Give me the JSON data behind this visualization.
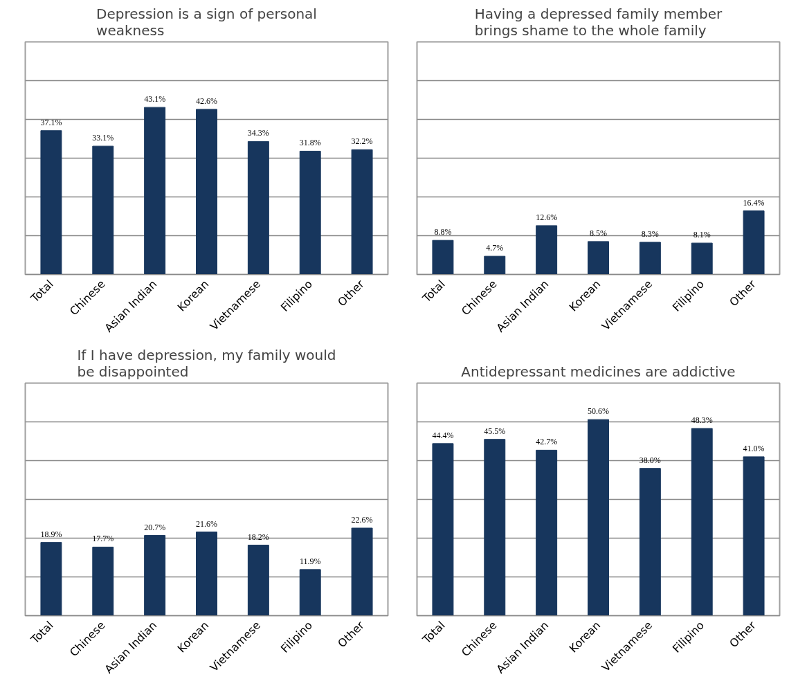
{
  "chart_data": [
    {
      "type": "bar",
      "title": "Depression is a sign of personal weakness",
      "categories": [
        "Total",
        "Chinese",
        "Asian Indian",
        "Korean",
        "Vietnamese",
        "Filipino",
        "Other"
      ],
      "values": [
        37.1,
        33.1,
        43.1,
        42.6,
        34.3,
        31.8,
        32.2
      ],
      "value_labels": [
        "37.1%",
        "33.1%",
        "43.1%",
        "42.6%",
        "34.3%",
        "31.8%",
        "32.2%"
      ],
      "color": "#17365d",
      "ylim": [
        0,
        60
      ],
      "yticks": [
        {
          "value": 0,
          "label": null
        },
        {
          "value": 10,
          "label": null
        },
        {
          "value": 20,
          "label": null
        },
        {
          "value": 30,
          "label": null
        },
        {
          "value": 40,
          "label": null
        },
        {
          "value": 50,
          "label": null
        },
        {
          "value": 60,
          "label": null
        }
      ],
      "grid": "y",
      "tick_labels": "x"
    },
    {
      "type": "bar",
      "title": "Having a depressed family member brings shame to the whole family",
      "categories": [
        "Total",
        "Chinese",
        "Asian Indian",
        "Korean",
        "Vietnamese",
        "Filipino",
        "Other"
      ],
      "values": [
        8.8,
        4.7,
        12.6,
        8.5,
        8.3,
        8.1,
        16.4
      ],
      "value_labels": [
        "8.8%",
        "4.7%",
        "12.6%",
        "8.5%",
        "8.3%",
        "8.1%",
        "16.4%"
      ],
      "color": "#17365d",
      "ylim": [
        0,
        60
      ],
      "yticks": [
        {
          "value": 0,
          "label": null
        },
        {
          "value": 10,
          "label": null
        },
        {
          "value": 20,
          "label": null
        },
        {
          "value": 30,
          "label": null
        },
        {
          "value": 40,
          "label": null
        },
        {
          "value": 50,
          "label": null
        },
        {
          "value": 60,
          "label": null
        }
      ],
      "grid": "y",
      "tick_labels": "x"
    },
    {
      "type": "bar",
      "title": "If I have depression, my family would be disappointed",
      "categories": [
        "Total",
        "Chinese",
        "Asian Indian",
        "Korean",
        "Vietnamese",
        "Filipino",
        "Other"
      ],
      "values": [
        18.9,
        17.7,
        20.7,
        21.6,
        18.2,
        11.9,
        22.6
      ],
      "value_labels": [
        "18.9%",
        "17.7%",
        "20.7%",
        "21.6%",
        "18.2%",
        "11.9%",
        "22.6%"
      ],
      "color": "#17365d",
      "ylim": [
        0,
        60
      ],
      "yticks": [
        {
          "value": 0,
          "label": null
        },
        {
          "value": 10,
          "label": null
        },
        {
          "value": 20,
          "label": null
        },
        {
          "value": 30,
          "label": null
        },
        {
          "value": 40,
          "label": null
        },
        {
          "value": 50,
          "label": null
        },
        {
          "value": 60,
          "label": null
        }
      ],
      "grid": "y",
      "tick_labels": "x"
    },
    {
      "type": "bar",
      "title": "Antidepressant medicines are addictive",
      "categories": [
        "Total",
        "Chinese",
        "Asian Indian",
        "Korean",
        "Vietnamese",
        "Filipino",
        "Other"
      ],
      "values": [
        44.4,
        45.5,
        42.7,
        50.6,
        38.0,
        48.3,
        41.0
      ],
      "value_labels": [
        "44.4%",
        "45.5%",
        "42.7%",
        "50.6%",
        "38.0%",
        "48.3%",
        "41.0%"
      ],
      "color": "#17365d",
      "ylim": [
        0,
        60
      ],
      "yticks": [
        {
          "value": 0,
          "label": null
        },
        {
          "value": 10,
          "label": null
        },
        {
          "value": 20,
          "label": null
        },
        {
          "value": 30,
          "label": null
        },
        {
          "value": 40,
          "label": null
        },
        {
          "value": 50,
          "label": null
        },
        {
          "value": 60,
          "label": null
        }
      ],
      "grid": "y",
      "tick_labels": "x"
    }
  ]
}
